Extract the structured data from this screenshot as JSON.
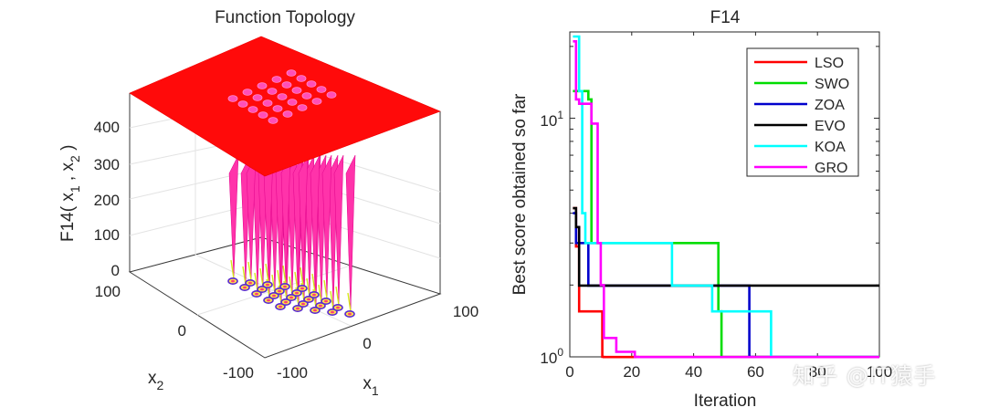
{
  "chart_data": [
    {
      "type": "surface",
      "title": "Function Topology",
      "xlabel": "x",
      "xlabel_sub": "1",
      "ylabel": "x",
      "ylabel_sub": "2",
      "zlabel_parts": [
        "F14( x",
        "1",
        " , x",
        "2",
        " )"
      ],
      "x_ticks": [
        "-100",
        "0",
        "100"
      ],
      "y_ticks": [
        "-100",
        "0",
        "100"
      ],
      "z_ticks": [
        "0",
        "100",
        "200",
        "300",
        "400"
      ],
      "xlim": [
        -100,
        100
      ],
      "ylim": [
        -100,
        100
      ],
      "zlim": [
        0,
        500
      ],
      "wells_grid": [
        5,
        5
      ]
    },
    {
      "type": "line",
      "title": "F14",
      "xlabel": "Iteration",
      "ylabel": "Best score obtained so far",
      "yscale": "log",
      "xlim": [
        0,
        100
      ],
      "ylim": [
        1,
        23
      ],
      "x_ticks": [
        "0",
        "20",
        "40",
        "60",
        "80",
        "100"
      ],
      "y_ticks": [
        {
          "value": 1,
          "base": "10",
          "exp": "0"
        },
        {
          "value": 10,
          "base": "10",
          "exp": "1"
        }
      ],
      "legend_position": "top-right",
      "series": [
        {
          "name": "LSO",
          "color": "#ff0000",
          "x": [
            1,
            2,
            3,
            4,
            5,
            10,
            10.5,
            11,
            14,
            18,
            22,
            100
          ],
          "y": [
            4.2,
            2.9,
            1.55,
            1.55,
            1.55,
            1.55,
            1.0,
            0.998,
            0.998,
            0.998,
            0.998,
            0.998
          ]
        },
        {
          "name": "SWO",
          "color": "#00dd00",
          "x": [
            1,
            2,
            4,
            6,
            7,
            8,
            12,
            18,
            30,
            47,
            48,
            49,
            100
          ],
          "y": [
            13,
            13,
            13,
            12,
            3.0,
            3.0,
            3.0,
            3.0,
            3.0,
            3.0,
            1.55,
            0.998,
            0.998
          ]
        },
        {
          "name": "ZOA",
          "color": "#0000cc",
          "x": [
            1,
            2,
            3,
            5,
            6,
            20,
            40,
            56,
            57,
            58,
            59,
            100
          ],
          "y": [
            4.0,
            3.0,
            3.0,
            3.0,
            1.99,
            1.99,
            1.99,
            1.99,
            1.99,
            1.0,
            0.998,
            0.998
          ]
        },
        {
          "name": "EVO",
          "color": "#000000",
          "x": [
            1,
            2,
            3,
            100
          ],
          "y": [
            4.2,
            3.5,
            1.99,
            1.99
          ]
        },
        {
          "name": "KOA",
          "color": "#00ffff",
          "x": [
            1,
            2,
            3,
            4,
            5,
            10,
            20,
            32,
            33,
            45,
            46,
            50,
            60,
            64,
            65,
            70,
            100
          ],
          "y": [
            22,
            22,
            13,
            4.0,
            3.0,
            3.0,
            3.0,
            3.0,
            1.99,
            1.99,
            1.55,
            1.55,
            1.55,
            1.55,
            0.998,
            0.998,
            0.998
          ]
        },
        {
          "name": "GRO",
          "color": "#ff00ff",
          "x": [
            1,
            2,
            3,
            6,
            7,
            9,
            10,
            11,
            15,
            20,
            21,
            22,
            100
          ],
          "y": [
            21,
            12,
            11.5,
            11.5,
            9.5,
            3.0,
            2.0,
            1.2,
            1.05,
            1.05,
            0.999,
            0.998,
            0.998
          ]
        }
      ]
    }
  ],
  "watermark": "知乎 @IT猿手"
}
